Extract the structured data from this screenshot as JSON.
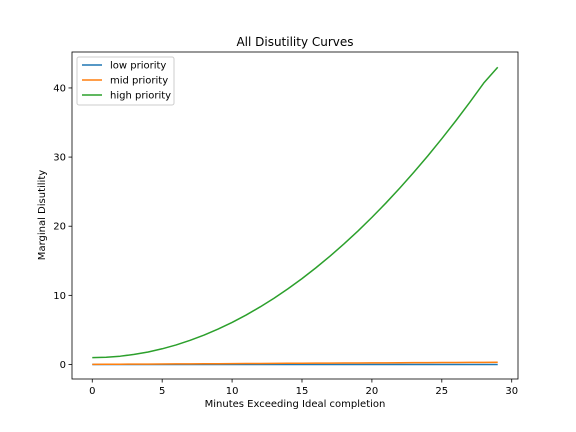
{
  "chart_data": {
    "type": "line",
    "title": "All Disutility Curves",
    "xlabel": "Minutes Exceeding Ideal completion",
    "ylabel": "Marginal Disutility",
    "xlim": [
      -1.45,
      30.45
    ],
    "ylim": [
      -2.1,
      45.2
    ],
    "xticks": [
      0,
      5,
      10,
      15,
      20,
      25,
      30
    ],
    "xtick_labels": [
      "0",
      "5",
      "10",
      "15",
      "20",
      "25",
      "30"
    ],
    "yticks": [
      0,
      10,
      20,
      30,
      40
    ],
    "ytick_labels": [
      "0",
      "10",
      "20",
      "30",
      "40"
    ],
    "grid": false,
    "legend_position": "upper-left",
    "x": [
      0,
      1,
      2,
      3,
      4,
      5,
      6,
      7,
      8,
      9,
      10,
      11,
      12,
      13,
      14,
      15,
      16,
      17,
      18,
      19,
      20,
      21,
      22,
      23,
      24,
      25,
      26,
      27,
      28,
      29
    ],
    "series": [
      {
        "name": "low priority",
        "color": "#1f77b4",
        "values": [
          0,
          0,
          0,
          0,
          0,
          0,
          0,
          0,
          0,
          0,
          0,
          0,
          0,
          0,
          0,
          0,
          0,
          0,
          0,
          0,
          0,
          0,
          0,
          0,
          0,
          0,
          0,
          0,
          0,
          0
        ]
      },
      {
        "name": "mid priority",
        "color": "#ff7f0e",
        "values": [
          0.02,
          0.03,
          0.04,
          0.05,
          0.06,
          0.07,
          0.08,
          0.09,
          0.1,
          0.11,
          0.12,
          0.14,
          0.15,
          0.16,
          0.17,
          0.18,
          0.19,
          0.2,
          0.21,
          0.22,
          0.23,
          0.24,
          0.25,
          0.26,
          0.27,
          0.28,
          0.29,
          0.3,
          0.31,
          0.33
        ]
      },
      {
        "name": "high priority",
        "color": "#2ca02c",
        "values": [
          1.0,
          1.05,
          1.2,
          1.46,
          1.81,
          2.27,
          2.83,
          3.5,
          4.26,
          5.12,
          6.08,
          7.15,
          8.32,
          9.58,
          10.95,
          12.42,
          13.99,
          15.66,
          17.43,
          19.3,
          21.28,
          23.35,
          25.53,
          27.81,
          30.18,
          32.66,
          35.24,
          37.92,
          40.71,
          43.0
        ]
      }
    ]
  }
}
